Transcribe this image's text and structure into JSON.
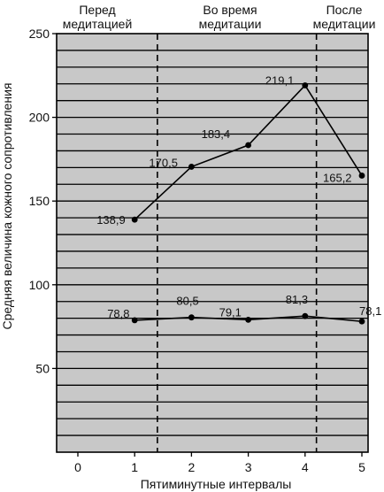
{
  "chart_data": {
    "type": "line",
    "title": "",
    "xlabel": "Пятиминутные интервалы",
    "ylabel": "Средняя величина кожного сопротивления",
    "x_ticks": [
      "0",
      "1",
      "2",
      "3",
      "4",
      "5"
    ],
    "y_ticks": [
      "50",
      "100",
      "150",
      "200",
      "250"
    ],
    "xlim": [
      0,
      5
    ],
    "ylim": [
      0,
      250
    ],
    "grid": "horizontal",
    "phases": [
      {
        "label": "Перед\nмедитацией",
        "from": 0,
        "to": 1.4
      },
      {
        "label": "Во время\nмедитации",
        "from": 1.4,
        "to": 4.2
      },
      {
        "label": "После\nмедитации",
        "from": 4.2,
        "to": 5
      }
    ],
    "series": [
      {
        "x": [
          1,
          2,
          3,
          4,
          5
        ],
        "values": [
          138.9,
          170.5,
          183.4,
          219.1,
          165.2
        ],
        "labels": [
          "138,9",
          "170,5",
          "183,4",
          "219,1",
          "165,2"
        ]
      },
      {
        "x": [
          1,
          2,
          3,
          4,
          5
        ],
        "values": [
          78.8,
          80.5,
          79.1,
          81.3,
          78.1
        ],
        "labels": [
          "78,8",
          "80,5",
          "79,1",
          "81,3",
          "78,1"
        ]
      }
    ],
    "colors": {
      "plot_background": "#c8c8c8",
      "line": "#000000"
    }
  }
}
